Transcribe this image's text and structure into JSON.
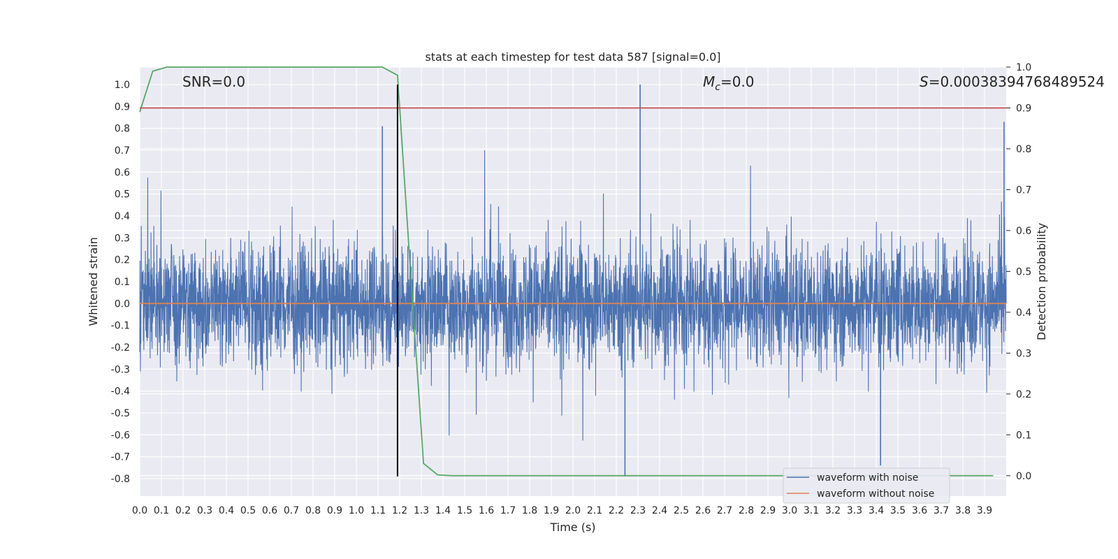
{
  "chart_data": {
    "type": "line",
    "title": "stats at each timestep for test data 587 [signal=0.0]",
    "xlabel": "Time (s)",
    "ylabel": "Whitened strain",
    "y2label": "Detection probability",
    "xlim": [
      0.0,
      4.0
    ],
    "ylim": [
      -0.88,
      1.08
    ],
    "y2lim": [
      -0.05,
      1.0
    ],
    "x_ticks": [
      "0.0",
      "0.1",
      "0.2",
      "0.3",
      "0.4",
      "0.5",
      "0.6",
      "0.7",
      "0.8",
      "0.9",
      "1.0",
      "1.1",
      "1.2",
      "1.3",
      "1.4",
      "1.5",
      "1.6",
      "1.7",
      "1.8",
      "1.9",
      "2.0",
      "2.1",
      "2.2",
      "2.3",
      "2.4",
      "2.5",
      "2.6",
      "2.7",
      "2.8",
      "2.9",
      "3.0",
      "3.1",
      "3.2",
      "3.3",
      "3.4",
      "3.5",
      "3.6",
      "3.7",
      "3.8",
      "3.9"
    ],
    "y_ticks": [
      "-0.8",
      "-0.7",
      "-0.6",
      "-0.5",
      "-0.4",
      "-0.3",
      "-0.2",
      "-0.1",
      "0.0",
      "0.1",
      "0.2",
      "0.3",
      "0.4",
      "0.5",
      "0.6",
      "0.7",
      "0.8",
      "0.9",
      "1.0"
    ],
    "y2_ticks": [
      "0.0",
      "0.1",
      "0.2",
      "0.3",
      "0.4",
      "0.5",
      "0.6",
      "0.7",
      "0.8",
      "0.9",
      "1.0"
    ],
    "grid": true,
    "legend_position": "bottom-right",
    "annotations": {
      "snr": "SNR=0.0",
      "mc_symbol": "M",
      "mc_subscript": "c",
      "mc_value": "=0.0",
      "s_symbol": "S",
      "s_value": "=0.00038394768489524"
    },
    "series": [
      {
        "name": "waveform with noise",
        "color": "#4c72b0",
        "axis": "left",
        "style": "dense noise, roughly symmetric about 0, typical amplitude ±0.3, peaks to +1.0 and -0.79",
        "peaks": [
          {
            "x": 1.12,
            "y": 0.81
          },
          {
            "x": 2.31,
            "y": 1.0
          },
          {
            "x": 3.99,
            "y": 0.83
          },
          {
            "x": 2.24,
            "y": -0.79
          },
          {
            "x": 3.42,
            "y": -0.74
          }
        ]
      },
      {
        "name": "waveform without noise",
        "color": "#dd8452",
        "axis": "left",
        "x": [
          0.0,
          4.0
        ],
        "y": [
          0.0,
          0.0
        ]
      },
      {
        "color": "#55a868",
        "axis": "right",
        "x": [
          0.0,
          0.06,
          0.125,
          0.19,
          0.25,
          0.31,
          0.375,
          0.44,
          0.5,
          0.56,
          0.625,
          0.69,
          0.75,
          0.81,
          0.875,
          0.94,
          1.0,
          1.06,
          1.12,
          1.19,
          1.25,
          1.31,
          1.375,
          1.44,
          1.5,
          1.75,
          2.0,
          2.5,
          3.0,
          3.5,
          3.94
        ],
        "y": [
          0.89,
          0.99,
          1.0,
          1.0,
          1.0,
          1.0,
          1.0,
          1.0,
          1.0,
          1.0,
          1.0,
          1.0,
          1.0,
          1.0,
          1.0,
          1.0,
          1.0,
          1.0,
          1.0,
          0.98,
          0.5,
          0.03,
          0.002,
          0.0,
          0.0,
          0.0,
          0.0,
          0.0,
          0.0,
          0.0,
          0.0
        ]
      },
      {
        "color": "#c44e52",
        "axis": "right",
        "x": [
          0.0,
          4.0
        ],
        "y": [
          0.9,
          0.9
        ]
      }
    ],
    "vlines": [
      {
        "x": 1.19,
        "color": "#000000",
        "ymin": -0.79,
        "ymax": 1.0
      }
    ],
    "colors": {
      "plot_background": "#eaeaf2",
      "grid": "#ffffff",
      "text": "#262626"
    }
  }
}
